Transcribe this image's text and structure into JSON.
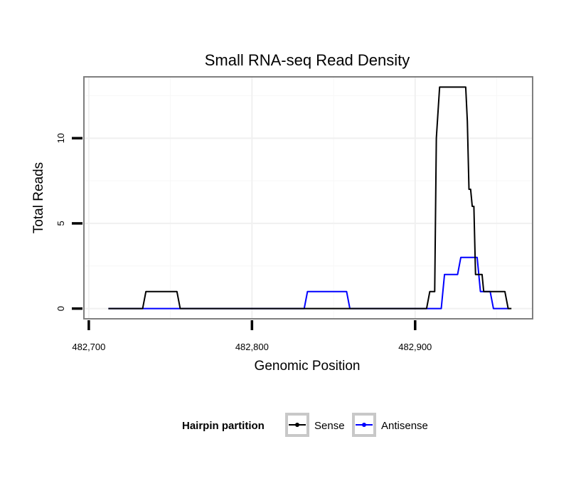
{
  "chart_data": {
    "type": "line",
    "title": "Small RNA-seq Read Density",
    "xlabel": "Genomic Position",
    "ylabel": "Total Reads",
    "xlim": [
      482697,
      482972
    ],
    "ylim": [
      -0.6,
      13.6
    ],
    "x_ticks": [
      482700,
      482800,
      482900
    ],
    "x_tick_labels": [
      "482,700",
      "482,800",
      "482,900"
    ],
    "y_ticks": [
      0,
      5,
      10
    ],
    "y_tick_labels": [
      "0",
      "5",
      "10"
    ],
    "grid": true,
    "legend": {
      "title": "Hairpin partition",
      "placement": "bottom"
    },
    "series": [
      {
        "name": "Sense",
        "color": "#000000",
        "x": [
          482712,
          482733,
          482735,
          482754,
          482756,
          482907,
          482909,
          482912,
          482913,
          482915,
          482931,
          482932,
          482933,
          482934,
          482935,
          482936,
          482937,
          482938,
          482941,
          482942,
          482955,
          482957,
          482959
        ],
        "y": [
          0,
          0,
          1,
          1,
          0,
          0,
          1,
          1,
          10,
          13,
          13,
          11,
          7,
          7,
          6,
          6,
          2,
          2,
          2,
          1,
          1,
          0,
          0
        ]
      },
      {
        "name": "Antisense",
        "color": "#0000ff",
        "x": [
          482712,
          482832,
          482834,
          482858,
          482860,
          482916,
          482918,
          482926,
          482928,
          482938,
          482940,
          482946,
          482948,
          482958
        ],
        "y": [
          0,
          0,
          1,
          1,
          0,
          0,
          2,
          2,
          3,
          3,
          1,
          1,
          0,
          0
        ]
      }
    ]
  }
}
